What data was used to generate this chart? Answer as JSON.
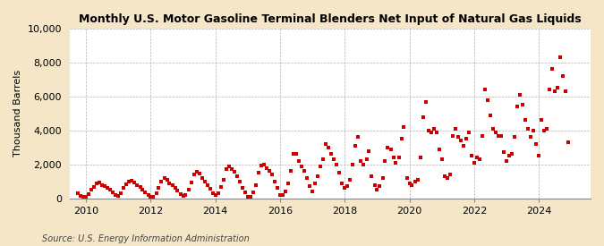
{
  "title": "Monthly U.S. Motor Gasoline Terminal Blenders Net Input of Natural Gas Liquids",
  "ylabel": "Thousand Barrels",
  "source": "Source: U.S. Energy Information Administration",
  "figure_bg_color": "#f5e6c8",
  "plot_bg_color": "#ffffff",
  "marker_color": "#cc0000",
  "ylim": [
    0,
    10000
  ],
  "yticks": [
    0,
    2000,
    4000,
    6000,
    8000,
    10000
  ],
  "xlim_start": 2009.5,
  "xlim_end": 2025.6,
  "xticks": [
    2010,
    2012,
    2014,
    2016,
    2018,
    2020,
    2022,
    2024
  ],
  "data": [
    [
      2009.75,
      300
    ],
    [
      2009.83,
      150
    ],
    [
      2009.92,
      100
    ],
    [
      2010.0,
      80
    ],
    [
      2010.08,
      250
    ],
    [
      2010.17,
      500
    ],
    [
      2010.25,
      650
    ],
    [
      2010.33,
      900
    ],
    [
      2010.42,
      950
    ],
    [
      2010.5,
      800
    ],
    [
      2010.58,
      700
    ],
    [
      2010.67,
      600
    ],
    [
      2010.75,
      500
    ],
    [
      2010.83,
      350
    ],
    [
      2010.92,
      200
    ],
    [
      2011.0,
      150
    ],
    [
      2011.08,
      300
    ],
    [
      2011.17,
      600
    ],
    [
      2011.25,
      850
    ],
    [
      2011.33,
      1000
    ],
    [
      2011.42,
      1050
    ],
    [
      2011.5,
      950
    ],
    [
      2011.58,
      800
    ],
    [
      2011.67,
      650
    ],
    [
      2011.75,
      500
    ],
    [
      2011.83,
      350
    ],
    [
      2011.92,
      200
    ],
    [
      2012.0,
      100
    ],
    [
      2012.08,
      80
    ],
    [
      2012.17,
      300
    ],
    [
      2012.25,
      600
    ],
    [
      2012.33,
      1000
    ],
    [
      2012.42,
      1200
    ],
    [
      2012.5,
      1100
    ],
    [
      2012.58,
      900
    ],
    [
      2012.67,
      750
    ],
    [
      2012.75,
      600
    ],
    [
      2012.83,
      450
    ],
    [
      2012.92,
      250
    ],
    [
      2013.0,
      150
    ],
    [
      2013.08,
      200
    ],
    [
      2013.17,
      500
    ],
    [
      2013.25,
      950
    ],
    [
      2013.33,
      1400
    ],
    [
      2013.42,
      1550
    ],
    [
      2013.5,
      1450
    ],
    [
      2013.58,
      1200
    ],
    [
      2013.67,
      1000
    ],
    [
      2013.75,
      800
    ],
    [
      2013.83,
      550
    ],
    [
      2013.92,
      300
    ],
    [
      2014.0,
      200
    ],
    [
      2014.08,
      300
    ],
    [
      2014.17,
      650
    ],
    [
      2014.25,
      1100
    ],
    [
      2014.33,
      1700
    ],
    [
      2014.42,
      1900
    ],
    [
      2014.5,
      1750
    ],
    [
      2014.58,
      1550
    ],
    [
      2014.67,
      1300
    ],
    [
      2014.75,
      1000
    ],
    [
      2014.83,
      600
    ],
    [
      2014.92,
      350
    ],
    [
      2015.0,
      100
    ],
    [
      2015.08,
      100
    ],
    [
      2015.17,
      350
    ],
    [
      2015.25,
      800
    ],
    [
      2015.33,
      1500
    ],
    [
      2015.42,
      1950
    ],
    [
      2015.5,
      2000
    ],
    [
      2015.58,
      1800
    ],
    [
      2015.67,
      1600
    ],
    [
      2015.75,
      1400
    ],
    [
      2015.83,
      1000
    ],
    [
      2015.92,
      600
    ],
    [
      2016.0,
      200
    ],
    [
      2016.08,
      200
    ],
    [
      2016.17,
      400
    ],
    [
      2016.25,
      900
    ],
    [
      2016.33,
      1600
    ],
    [
      2016.42,
      2600
    ],
    [
      2016.5,
      2600
    ],
    [
      2016.58,
      2200
    ],
    [
      2016.67,
      1900
    ],
    [
      2016.75,
      1600
    ],
    [
      2016.83,
      1200
    ],
    [
      2016.92,
      700
    ],
    [
      2017.0,
      400
    ],
    [
      2017.08,
      900
    ],
    [
      2017.17,
      1300
    ],
    [
      2017.25,
      1900
    ],
    [
      2017.33,
      2300
    ],
    [
      2017.42,
      3200
    ],
    [
      2017.5,
      3000
    ],
    [
      2017.58,
      2600
    ],
    [
      2017.67,
      2300
    ],
    [
      2017.75,
      2000
    ],
    [
      2017.83,
      1500
    ],
    [
      2017.92,
      900
    ],
    [
      2018.0,
      600
    ],
    [
      2018.08,
      700
    ],
    [
      2018.17,
      1100
    ],
    [
      2018.25,
      2000
    ],
    [
      2018.33,
      3100
    ],
    [
      2018.42,
      3600
    ],
    [
      2018.5,
      2200
    ],
    [
      2018.58,
      2000
    ],
    [
      2018.67,
      2300
    ],
    [
      2018.75,
      2800
    ],
    [
      2018.83,
      1300
    ],
    [
      2018.92,
      750
    ],
    [
      2019.0,
      500
    ],
    [
      2019.08,
      700
    ],
    [
      2019.17,
      1200
    ],
    [
      2019.25,
      2200
    ],
    [
      2019.33,
      3000
    ],
    [
      2019.42,
      2900
    ],
    [
      2019.5,
      2400
    ],
    [
      2019.58,
      2100
    ],
    [
      2019.67,
      2400
    ],
    [
      2019.75,
      3500
    ],
    [
      2019.83,
      4200
    ],
    [
      2019.92,
      1200
    ],
    [
      2020.0,
      900
    ],
    [
      2020.08,
      750
    ],
    [
      2020.17,
      1000
    ],
    [
      2020.25,
      1100
    ],
    [
      2020.33,
      2400
    ],
    [
      2020.42,
      4800
    ],
    [
      2020.5,
      5700
    ],
    [
      2020.58,
      4000
    ],
    [
      2020.67,
      3900
    ],
    [
      2020.75,
      4100
    ],
    [
      2020.83,
      3900
    ],
    [
      2020.92,
      2900
    ],
    [
      2021.0,
      2300
    ],
    [
      2021.08,
      1300
    ],
    [
      2021.17,
      1200
    ],
    [
      2021.25,
      1400
    ],
    [
      2021.33,
      3700
    ],
    [
      2021.42,
      4100
    ],
    [
      2021.5,
      3600
    ],
    [
      2021.58,
      3400
    ],
    [
      2021.67,
      3100
    ],
    [
      2021.75,
      3500
    ],
    [
      2021.83,
      3900
    ],
    [
      2021.92,
      2500
    ],
    [
      2022.0,
      2100
    ],
    [
      2022.08,
      2400
    ],
    [
      2022.17,
      2300
    ],
    [
      2022.25,
      3700
    ],
    [
      2022.33,
      6400
    ],
    [
      2022.42,
      5800
    ],
    [
      2022.5,
      4900
    ],
    [
      2022.58,
      4100
    ],
    [
      2022.67,
      3900
    ],
    [
      2022.75,
      3700
    ],
    [
      2022.83,
      3700
    ],
    [
      2022.92,
      2700
    ],
    [
      2023.0,
      2200
    ],
    [
      2023.08,
      2500
    ],
    [
      2023.17,
      2600
    ],
    [
      2023.25,
      3600
    ],
    [
      2023.33,
      5400
    ],
    [
      2023.42,
      6100
    ],
    [
      2023.5,
      5500
    ],
    [
      2023.58,
      4600
    ],
    [
      2023.67,
      4100
    ],
    [
      2023.75,
      3600
    ],
    [
      2023.83,
      4000
    ],
    [
      2023.92,
      3200
    ],
    [
      2024.0,
      2500
    ],
    [
      2024.08,
      4600
    ],
    [
      2024.17,
      4000
    ],
    [
      2024.25,
      4100
    ],
    [
      2024.33,
      6400
    ],
    [
      2024.42,
      7600
    ],
    [
      2024.5,
      6300
    ],
    [
      2024.58,
      6500
    ],
    [
      2024.67,
      8300
    ],
    [
      2024.75,
      7200
    ],
    [
      2024.83,
      6300
    ],
    [
      2024.92,
      3300
    ]
  ]
}
